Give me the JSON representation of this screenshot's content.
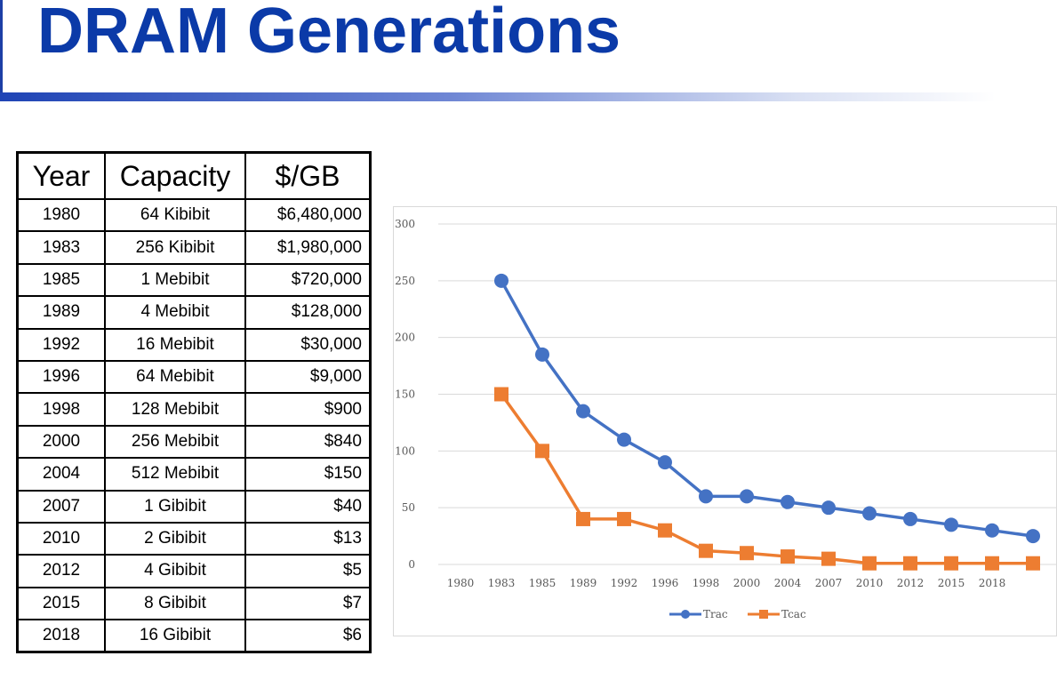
{
  "title": "DRAM Generations",
  "table": {
    "headers": [
      "Year",
      "Capacity",
      "$/GB"
    ],
    "rows": [
      [
        "1980",
        "64 Kibibit",
        "$6,480,000"
      ],
      [
        "1983",
        "256 Kibibit",
        "$1,980,000"
      ],
      [
        "1985",
        "1 Mebibit",
        "$720,000"
      ],
      [
        "1989",
        "4 Mebibit",
        "$128,000"
      ],
      [
        "1992",
        "16 Mebibit",
        "$30,000"
      ],
      [
        "1996",
        "64 Mebibit",
        "$9,000"
      ],
      [
        "1998",
        "128 Mebibit",
        "$900"
      ],
      [
        "2000",
        "256 Mebibit",
        "$840"
      ],
      [
        "2004",
        "512 Mebibit",
        "$150"
      ],
      [
        "2007",
        "1 Gibibit",
        "$40"
      ],
      [
        "2010",
        "2 Gibibit",
        "$13"
      ],
      [
        "2012",
        "4 Gibibit",
        "$5"
      ],
      [
        "2015",
        "8 Gibibit",
        "$7"
      ],
      [
        "2018",
        "16 Gibibit",
        "$6"
      ]
    ]
  },
  "chart_data": {
    "type": "line",
    "title": "",
    "xlabel": "",
    "ylabel": "",
    "categories": [
      "1980",
      "1983",
      "1985",
      "1989",
      "1992",
      "1996",
      "1998",
      "2000",
      "2004",
      "2007",
      "2010",
      "2012",
      "2015",
      "2018",
      ""
    ],
    "series": [
      {
        "name": "Trac",
        "color": "#4472c4",
        "marker": "circle",
        "values": [
          null,
          250,
          185,
          135,
          110,
          90,
          60,
          60,
          55,
          50,
          45,
          40,
          35,
          30,
          25
        ]
      },
      {
        "name": "Tcac",
        "color": "#ed7d31",
        "marker": "square",
        "values": [
          null,
          150,
          100,
          40,
          40,
          30,
          12,
          10,
          7,
          5,
          1,
          1,
          1,
          1,
          1
        ]
      }
    ],
    "ylim": [
      0,
      300
    ],
    "yticks": [
      0,
      50,
      100,
      150,
      200,
      250,
      300
    ],
    "grid": true,
    "legend": "bottom"
  }
}
